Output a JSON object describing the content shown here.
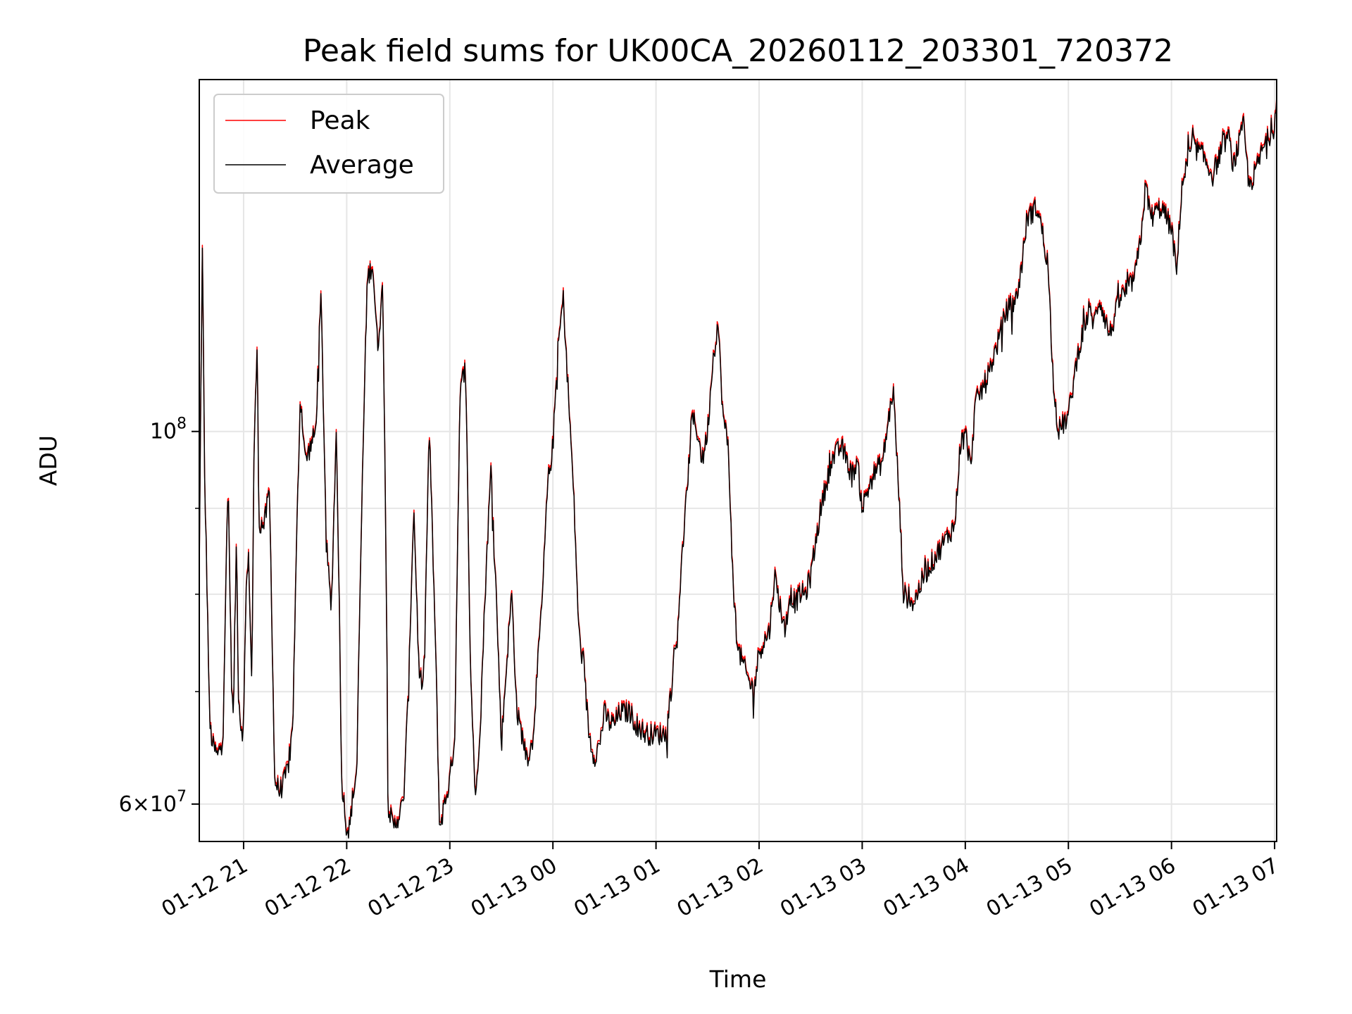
{
  "chart_data": {
    "type": "line",
    "title": "Peak field sums for UK00CA_20260112_203301_720372",
    "xlabel": "Time",
    "ylabel": "ADU",
    "yscale": "log",
    "xlim_hours": [
      -0.43,
      10.02
    ],
    "ylim": [
      57000000,
      162000000
    ],
    "grid": true,
    "legend_position": "top-left",
    "x_ticks": [
      {
        "hour": 0,
        "label": "01-12 21"
      },
      {
        "hour": 1,
        "label": "01-12 22"
      },
      {
        "hour": 2,
        "label": "01-12 23"
      },
      {
        "hour": 3,
        "label": "01-13 00"
      },
      {
        "hour": 4,
        "label": "01-13 01"
      },
      {
        "hour": 5,
        "label": "01-13 02"
      },
      {
        "hour": 6,
        "label": "01-13 03"
      },
      {
        "hour": 7,
        "label": "01-13 04"
      },
      {
        "hour": 8,
        "label": "01-13 05"
      },
      {
        "hour": 9,
        "label": "01-13 06"
      },
      {
        "hour": 10,
        "label": "01-13 07"
      }
    ],
    "y_major_ticks": [
      {
        "value": 60000000,
        "base": "6",
        "exp": "7"
      },
      {
        "value": 100000000,
        "base": "",
        "exp": "8"
      }
    ],
    "y_minor_ticks": [
      70000000,
      80000000,
      90000000
    ],
    "series": [
      {
        "name": "Peak",
        "color": "#ff0000",
        "offset": 1.004
      },
      {
        "name": "Average",
        "color": "#000000",
        "offset": 1.0
      }
    ],
    "average_anchors": {
      "hours": [
        -0.43,
        -0.4,
        -0.38,
        -0.33,
        -0.3,
        -0.25,
        -0.2,
        -0.15,
        -0.12,
        -0.1,
        -0.07,
        -0.05,
        -0.03,
        0,
        0.02,
        0.05,
        0.08,
        0.1,
        0.13,
        0.15,
        0.2,
        0.25,
        0.3,
        0.35,
        0.4,
        0.45,
        0.48,
        0.5,
        0.55,
        0.6,
        0.7,
        0.75,
        0.8,
        0.85,
        0.9,
        0.95,
        1.0,
        1.03,
        1.05,
        1.1,
        1.15,
        1.2,
        1.25,
        1.3,
        1.35,
        1.4,
        1.45,
        1.5,
        1.55,
        1.6,
        1.65,
        1.7,
        1.75,
        1.8,
        1.9,
        2.0,
        2.05,
        2.1,
        2.15,
        2.2,
        2.25,
        2.3,
        2.35,
        2.4,
        2.5,
        2.6,
        2.65,
        2.7,
        2.72,
        2.75,
        2.8,
        2.85,
        2.9,
        2.95,
        3.0,
        3.05,
        3.1,
        3.15,
        3.2,
        3.25,
        3.3,
        3.35,
        3.4,
        3.45,
        3.5,
        3.55,
        3.6,
        3.65,
        3.7,
        3.75,
        3.8,
        3.9,
        4.0,
        4.1,
        4.2,
        4.3,
        4.35,
        4.4,
        4.45,
        4.5,
        4.55,
        4.6,
        4.65,
        4.7,
        4.75,
        4.8,
        4.9,
        4.95,
        5.0,
        5.1,
        5.15,
        5.25,
        5.3,
        5.35,
        5.4,
        5.45,
        5.5,
        5.6,
        5.7,
        5.8,
        5.9,
        5.95,
        6.0,
        6.1,
        6.2,
        6.3,
        6.4,
        6.5,
        6.6,
        6.8,
        6.9,
        6.95,
        7.0,
        7.05,
        7.1,
        7.2,
        7.3,
        7.4,
        7.5,
        7.55,
        7.6,
        7.7,
        7.8,
        7.85,
        7.9,
        8.0,
        8.1,
        8.2,
        8.25,
        8.3,
        8.4,
        8.5,
        8.6,
        8.65,
        8.7,
        8.75,
        8.8,
        8.9,
        9.0,
        9.05,
        9.1,
        9.15,
        9.2,
        9.3,
        9.4,
        9.5,
        9.55,
        9.6,
        9.7,
        9.75,
        9.8,
        9.9,
        9.95,
        10.0,
        10.02
      ],
      "values": [
        82,
        128,
        95,
        67,
        65,
        64,
        66,
        93,
        72,
        67,
        86,
        70,
        67,
        66,
        80,
        84,
        70,
        96,
        112,
        88,
        88,
        92,
        62,
        61,
        62,
        64,
        68,
        78,
        105,
        96,
        100,
        120,
        86,
        78,
        100,
        62,
        58,
        58,
        60,
        63,
        92,
        123,
        126,
        112,
        122,
        60,
        58,
        59,
        60,
        70,
        90,
        72,
        70,
        100,
        58,
        62,
        66,
        105,
        110,
        72,
        60,
        68,
        82,
        95,
        65,
        80,
        68,
        66,
        65,
        64,
        65,
        72,
        80,
        93,
        98,
        112,
        120,
        105,
        92,
        76,
        72,
        66,
        64,
        65,
        68,
        67,
        67,
        68,
        68,
        68,
        67,
        66,
        66,
        66,
        75,
        92,
        102,
        100,
        96,
        100,
        110,
        116,
        102,
        98,
        80,
        74,
        71,
        70,
        74,
        76,
        82,
        76,
        80,
        79,
        80,
        80,
        82,
        90,
        96,
        98,
        94,
        96,
        90,
        94,
        96,
        106,
        80,
        79,
        82,
        86,
        88,
        98,
        100,
        95,
        104,
        107,
        112,
        118,
        120,
        126,
        134,
        136,
        126,
        108,
        100,
        102,
        112,
        118,
        116,
        120,
        114,
        120,
        122,
        124,
        130,
        140,
        134,
        136,
        132,
        124,
        140,
        144,
        148,
        146,
        142,
        148,
        150,
        144,
        152,
        140,
        142,
        148,
        150,
        152,
        160
      ]
    }
  }
}
